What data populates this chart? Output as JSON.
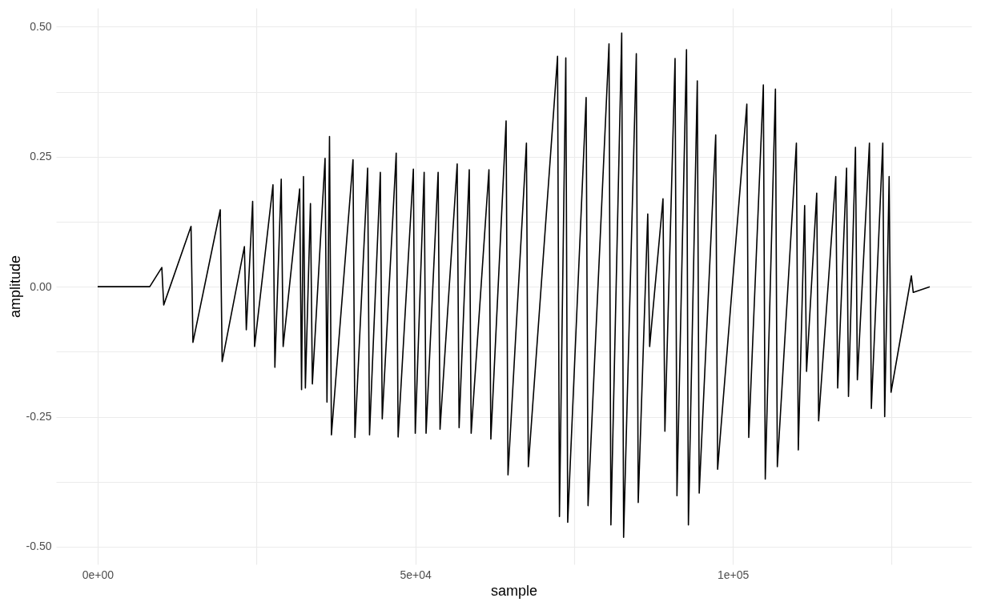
{
  "chart_data": {
    "type": "line",
    "xlabel": "sample",
    "ylabel": "amplitude",
    "grid": true,
    "xlim": [
      -6550,
      137550
    ],
    "ylim": [
      -0.534,
      0.536
    ],
    "xticks": [
      {
        "value": 0,
        "label": "0e+00"
      },
      {
        "value": 25000,
        "label": null
      },
      {
        "value": 50000,
        "label": "5e+04"
      },
      {
        "value": 75000,
        "label": null
      },
      {
        "value": 100000,
        "label": "1e+05"
      },
      {
        "value": 125000,
        "label": null
      }
    ],
    "yticks": [
      {
        "value": -0.5,
        "label": "-0.50"
      },
      {
        "value": -0.375,
        "label": null
      },
      {
        "value": -0.25,
        "label": "-0.25"
      },
      {
        "value": -0.125,
        "label": null
      },
      {
        "value": 0,
        "label": "0.00"
      },
      {
        "value": 0.125,
        "label": null
      },
      {
        "value": 0.25,
        "label": "0.25"
      },
      {
        "value": 0.375,
        "label": null
      },
      {
        "value": 0.5,
        "label": "0.50"
      }
    ],
    "x": [
      0,
      8200,
      10100,
      10400,
      14700,
      15000,
      19300,
      19600,
      23100,
      23400,
      24400,
      24700,
      27600,
      27900,
      28900,
      29200,
      31800,
      32100,
      32400,
      32700,
      33500,
      33800,
      35800,
      36100,
      36500,
      36800,
      40200,
      40500,
      42500,
      42800,
      44500,
      44800,
      47000,
      47300,
      49700,
      50000,
      51400,
      51700,
      53600,
      53900,
      56600,
      56900,
      58500,
      58800,
      61600,
      61900,
      64300,
      64600,
      67500,
      67800,
      72400,
      72700,
      73700,
      74000,
      76900,
      77200,
      80500,
      80800,
      82500,
      82800,
      84800,
      85100,
      86600,
      86900,
      89000,
      89300,
      90900,
      91200,
      92700,
      93000,
      94400,
      94700,
      97300,
      97600,
      102200,
      102500,
      104800,
      105100,
      106700,
      107000,
      110000,
      110300,
      111300,
      111600,
      113200,
      113500,
      116200,
      116500,
      117900,
      118200,
      119300,
      119600,
      121500,
      121800,
      123600,
      123900,
      124600,
      124900,
      128100,
      128400,
      131000
    ],
    "series": [
      {
        "color": "#000000",
        "values": [
          0,
          0,
          0.037,
          -0.035,
          0.116,
          -0.107,
          0.148,
          -0.144,
          0.077,
          -0.083,
          0.164,
          -0.115,
          0.196,
          -0.155,
          0.207,
          -0.115,
          0.188,
          -0.198,
          0.212,
          -0.195,
          0.16,
          -0.187,
          0.247,
          -0.222,
          0.289,
          -0.285,
          0.244,
          -0.29,
          0.228,
          -0.285,
          0.22,
          -0.254,
          0.257,
          -0.289,
          0.226,
          -0.282,
          0.22,
          -0.282,
          0.22,
          -0.274,
          0.236,
          -0.271,
          0.225,
          -0.282,
          0.225,
          -0.293,
          0.319,
          -0.362,
          0.276,
          -0.346,
          0.443,
          -0.442,
          0.44,
          -0.453,
          0.364,
          -0.421,
          0.467,
          -0.458,
          0.488,
          -0.482,
          0.448,
          -0.415,
          0.14,
          -0.115,
          0.169,
          -0.278,
          0.439,
          -0.402,
          0.456,
          -0.458,
          0.396,
          -0.397,
          0.292,
          -0.351,
          0.351,
          -0.29,
          0.388,
          -0.37,
          0.38,
          -0.346,
          0.276,
          -0.314,
          0.156,
          -0.163,
          0.18,
          -0.258,
          0.212,
          -0.195,
          0.228,
          -0.211,
          0.268,
          -0.179,
          0.276,
          -0.234,
          0.276,
          -0.25,
          0.212,
          -0.203,
          0.021,
          -0.011,
          0
        ]
      }
    ]
  }
}
